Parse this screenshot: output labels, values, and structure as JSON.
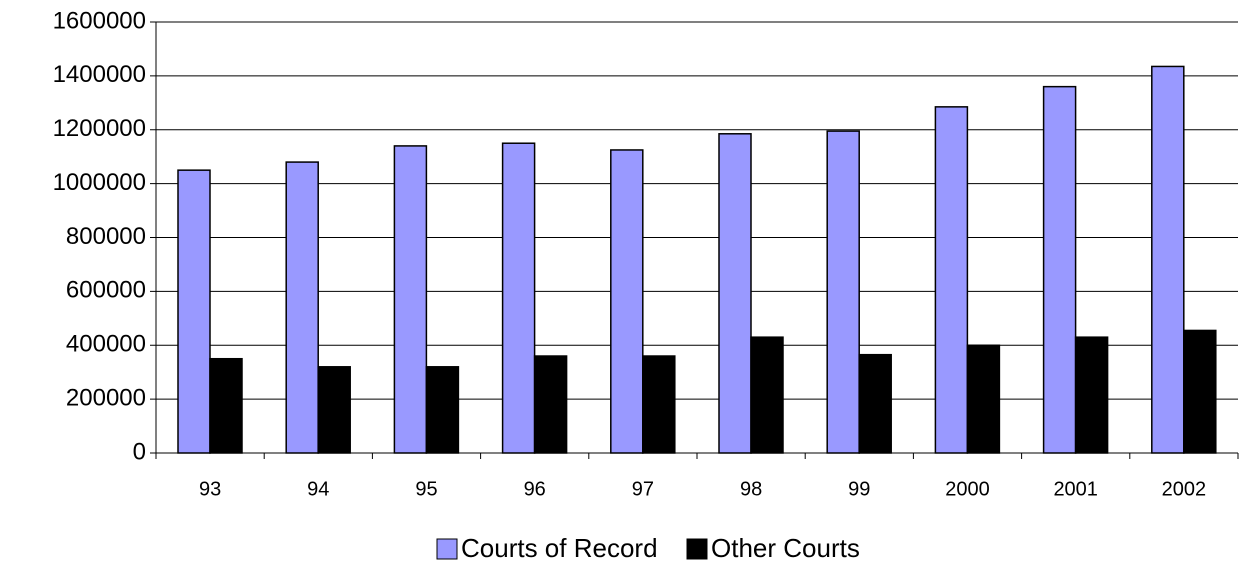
{
  "chart_data": {
    "type": "bar",
    "categories": [
      "93",
      "94",
      "95",
      "96",
      "97",
      "98",
      "99",
      "2000",
      "2001",
      "2002"
    ],
    "series": [
      {
        "name": "Courts of Record",
        "color": "#9999ff",
        "values": [
          1050000,
          1080000,
          1140000,
          1150000,
          1125000,
          1185000,
          1195000,
          1285000,
          1360000,
          1435000
        ]
      },
      {
        "name": "Other Courts",
        "color": "#000000",
        "values": [
          350000,
          320000,
          320000,
          360000,
          360000,
          430000,
          365000,
          400000,
          430000,
          455000
        ]
      }
    ],
    "ylim": [
      0,
      1600000
    ],
    "yticks": [
      0,
      200000,
      400000,
      600000,
      800000,
      1000000,
      1200000,
      1400000,
      1600000
    ],
    "grid": true,
    "legend": "bottom"
  }
}
